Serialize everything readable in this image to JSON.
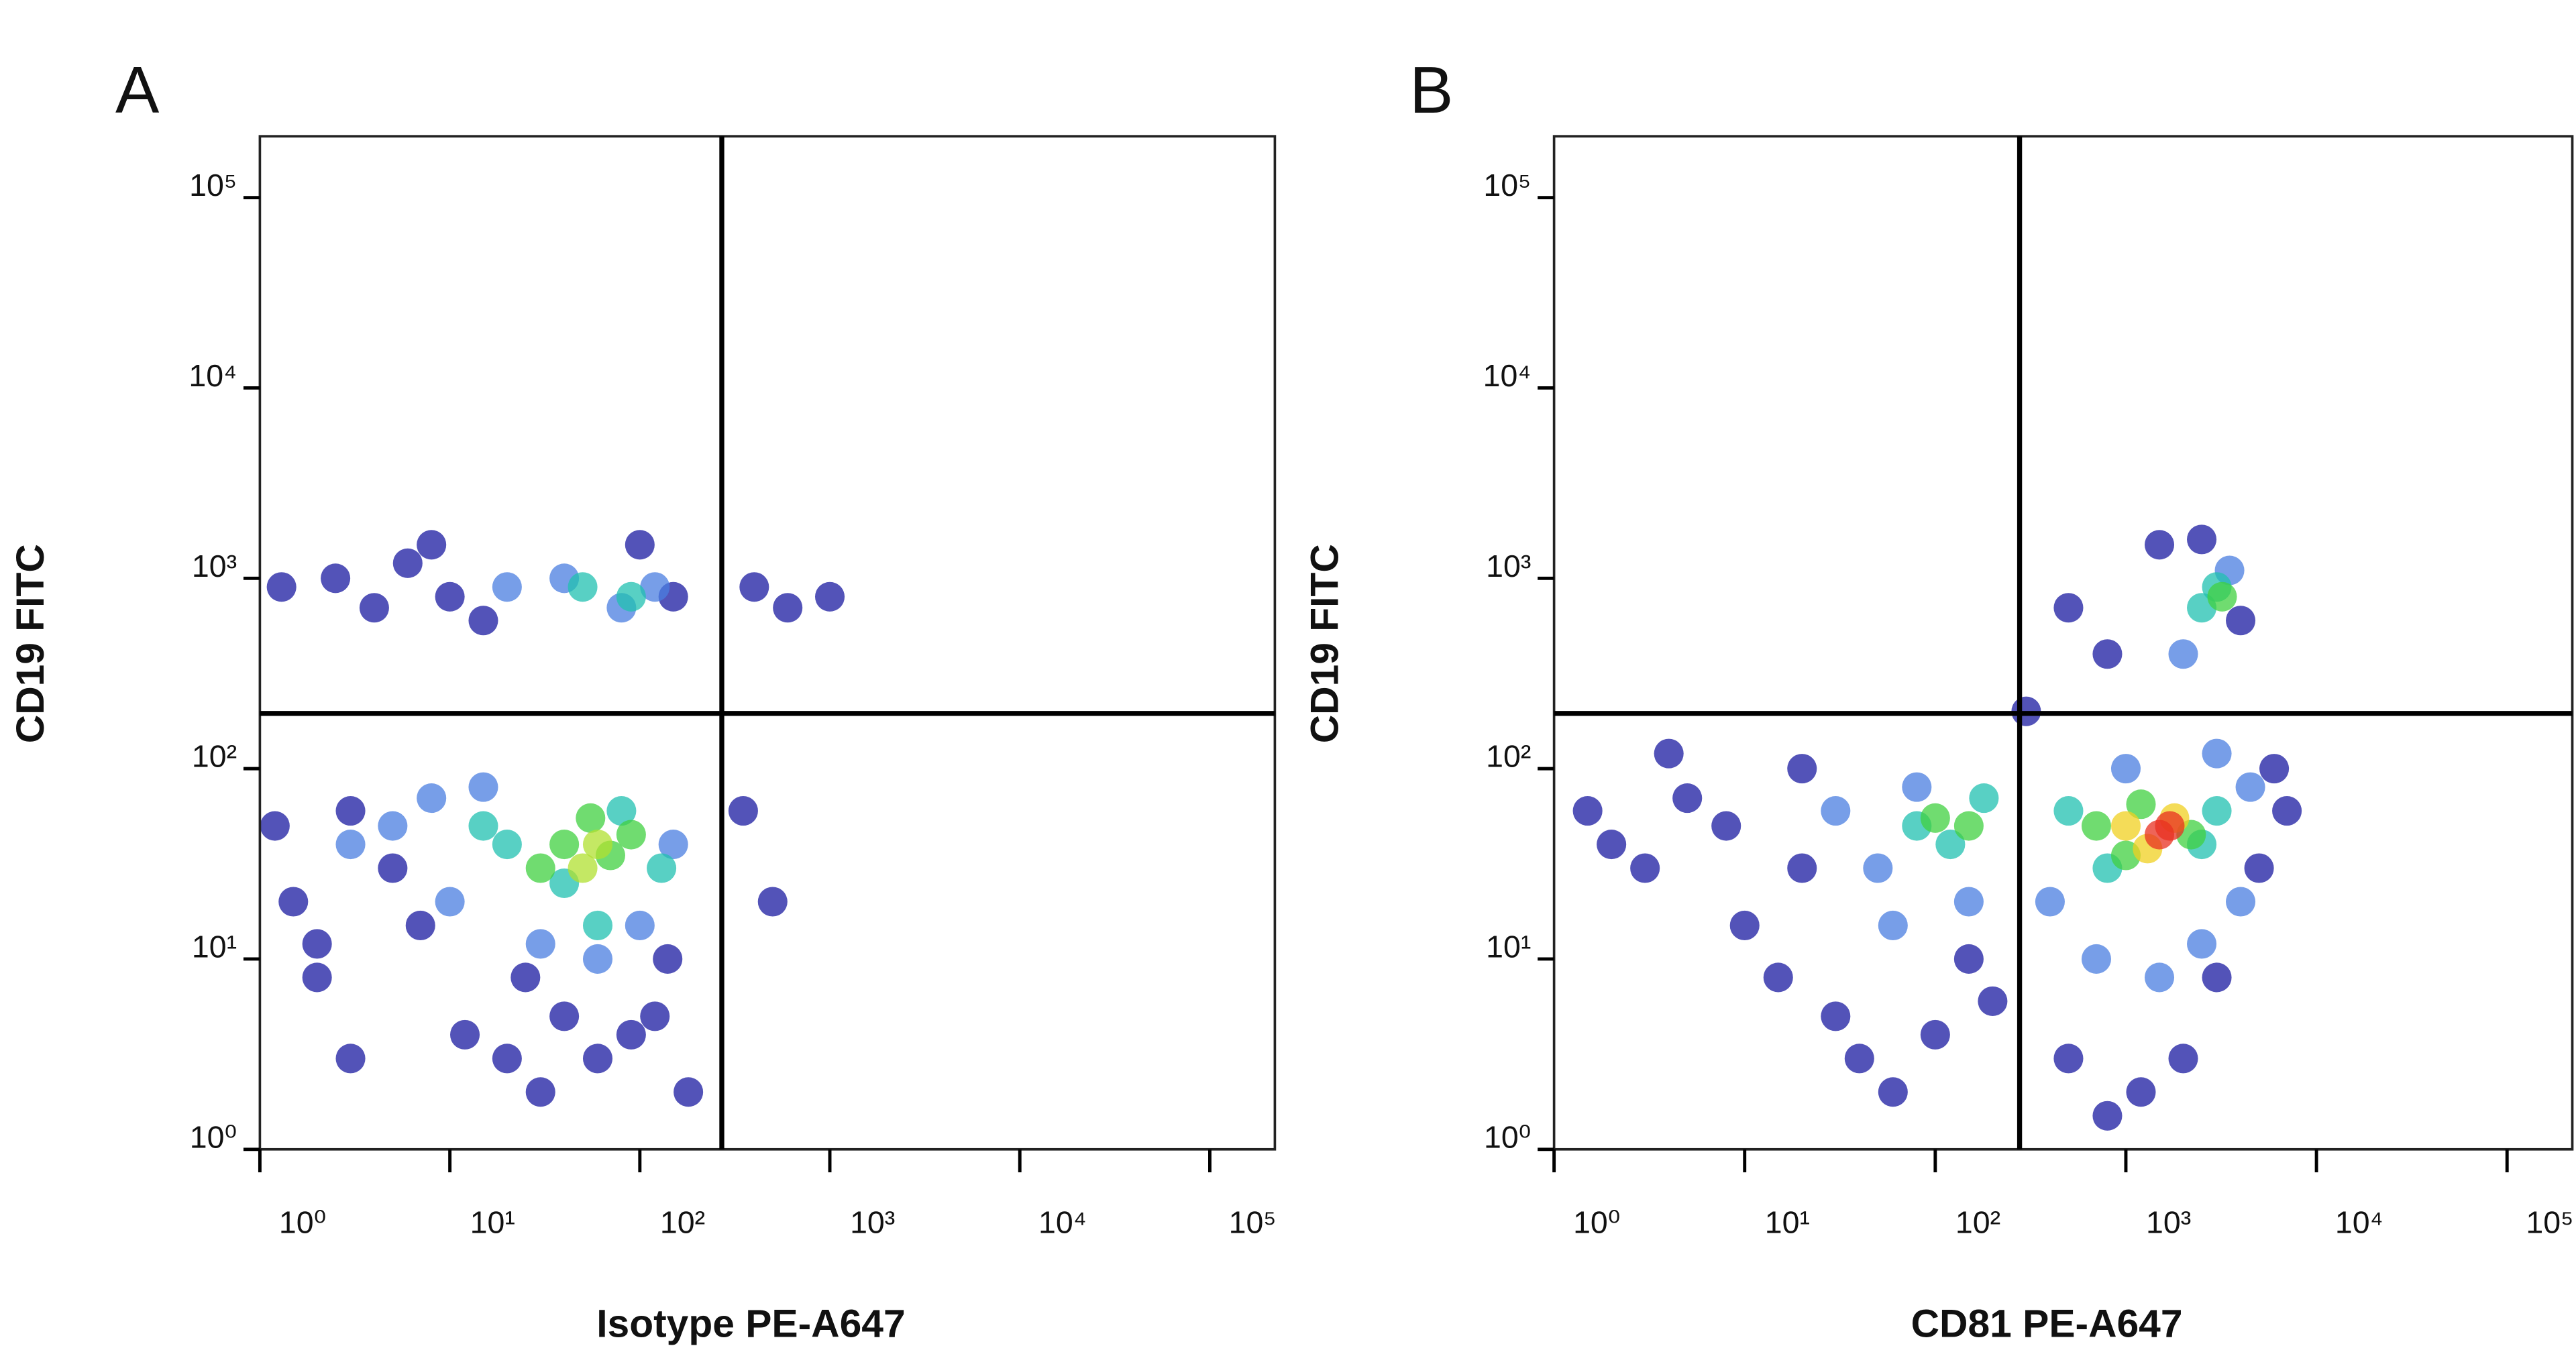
{
  "chart_data": [
    {
      "type": "scatter",
      "title": "A",
      "xlabel": "Isotype PE-A647",
      "ylabel": "CD19 FITC",
      "xscale": "log",
      "yscale": "log",
      "xlim": [
        1,
        220000
      ],
      "ylim": [
        1,
        210000
      ],
      "xticks": [
        {
          "value": 1,
          "label": "10⁰"
        },
        {
          "value": 10,
          "label": "10¹"
        },
        {
          "value": 100,
          "label": "10²"
        },
        {
          "value": 1000,
          "label": "10³"
        },
        {
          "value": 10000,
          "label": "10⁴"
        },
        {
          "value": 100000,
          "label": "10⁵"
        }
      ],
      "yticks": [
        {
          "value": 1,
          "label": "10⁰"
        },
        {
          "value": 10,
          "label": "10¹"
        },
        {
          "value": 100,
          "label": "10²"
        },
        {
          "value": 1000,
          "label": "10³"
        },
        {
          "value": 10000,
          "label": "10⁴"
        },
        {
          "value": 100000,
          "label": "10⁵"
        }
      ],
      "x_gate": 270,
      "y_gate": 195,
      "series": [
        {
          "color": "#1a1aa0",
          "x": [
            1.2,
            1.5,
            2,
            3,
            1.3,
            2.5,
            4,
            6,
            10,
            15,
            8,
            5,
            20,
            30,
            120,
            180,
            150,
            100,
            3,
            2,
            7,
            12,
            25,
            40,
            60,
            90,
            140,
            400,
            600,
            1000,
            350,
            500
          ],
          "y": [
            50,
            20,
            8,
            3,
            900,
            1000,
            700,
            1200,
            800,
            600,
            1500,
            30,
            3,
            2,
            5,
            2,
            800,
            1500,
            60,
            12,
            15,
            4,
            8,
            5,
            3,
            4,
            10,
            900,
            700,
            800,
            60,
            20
          ]
        },
        {
          "color": "#4a7ee0",
          "x": [
            5,
            10,
            15,
            30,
            60,
            100,
            150,
            20,
            40,
            80,
            120,
            3,
            8
          ],
          "y": [
            50,
            20,
            80,
            12,
            10,
            15,
            40,
            900,
            1000,
            700,
            900,
            40,
            70
          ]
        },
        {
          "color": "#20c0b0",
          "x": [
            20,
            40,
            80,
            130,
            50,
            90,
            15,
            60
          ],
          "y": [
            40,
            25,
            60,
            30,
            900,
            800,
            50,
            15
          ]
        },
        {
          "color": "#40d040",
          "x": [
            40,
            70,
            55,
            90,
            30
          ],
          "y": [
            40,
            35,
            55,
            45,
            30
          ]
        },
        {
          "color": "#b0e030",
          "x": [
            60,
            50
          ],
          "y": [
            40,
            30
          ]
        }
      ]
    },
    {
      "type": "scatter",
      "title": "B",
      "xlabel": "CD81 PE-A647",
      "ylabel": "CD19 FITC",
      "xscale": "log",
      "yscale": "log",
      "xlim": [
        1,
        220000
      ],
      "ylim": [
        1,
        210000
      ],
      "xticks": [
        {
          "value": 1,
          "label": "10⁰"
        },
        {
          "value": 10,
          "label": "10¹"
        },
        {
          "value": 100,
          "label": "10²"
        },
        {
          "value": 1000,
          "label": "10³"
        },
        {
          "value": 10000,
          "label": "10⁴"
        },
        {
          "value": 100000,
          "label": "10⁵"
        }
      ],
      "yticks": [
        {
          "value": 1,
          "label": "10⁰"
        },
        {
          "value": 10,
          "label": "10¹"
        },
        {
          "value": 100,
          "label": "10²"
        },
        {
          "value": 1000,
          "label": "10³"
        },
        {
          "value": 10000,
          "label": "10⁴"
        },
        {
          "value": 100000,
          "label": "10⁵"
        }
      ],
      "x_gate": 277,
      "y_gate": 195,
      "series": [
        {
          "color": "#1a1aa0",
          "x": [
            1.5,
            2,
            3,
            5,
            8,
            10,
            15,
            20,
            30,
            40,
            60,
            100,
            150,
            200,
            500,
            800,
            1200,
            2000,
            3000,
            5000,
            7000,
            6000,
            1500,
            2500,
            4000,
            800,
            500,
            300,
            20,
            4
          ],
          "y": [
            60,
            40,
            30,
            70,
            50,
            15,
            8,
            30,
            5,
            3,
            2,
            4,
            10,
            6,
            3,
            1.5,
            2,
            3,
            8,
            30,
            60,
            100,
            1500,
            1600,
            600,
            400,
            700,
            200,
            100,
            120
          ]
        },
        {
          "color": "#4a7ee0",
          "x": [
            30,
            50,
            80,
            60,
            150,
            400,
            700,
            1500,
            2500,
            4000,
            4500,
            3000,
            2000,
            3500,
            1000
          ],
          "y": [
            60,
            30,
            80,
            15,
            20,
            20,
            10,
            8,
            12,
            20,
            80,
            120,
            400,
            1100,
            100
          ]
        },
        {
          "color": "#20c0b0",
          "x": [
            80,
            120,
            180,
            500,
            800,
            2500,
            3000,
            3000,
            2500
          ],
          "y": [
            50,
            40,
            70,
            60,
            30,
            40,
            60,
            900,
            700
          ]
        },
        {
          "color": "#40d040",
          "x": [
            100,
            150,
            700,
            1000,
            2200,
            3200,
            1200
          ],
          "y": [
            55,
            50,
            50,
            35,
            45,
            800,
            65
          ]
        },
        {
          "color": "#f0d020",
          "x": [
            1000,
            1800,
            1300
          ],
          "y": [
            50,
            55,
            38
          ]
        },
        {
          "color": "#e83020",
          "x": [
            1500,
            1700
          ],
          "y": [
            45,
            50
          ]
        }
      ]
    }
  ]
}
